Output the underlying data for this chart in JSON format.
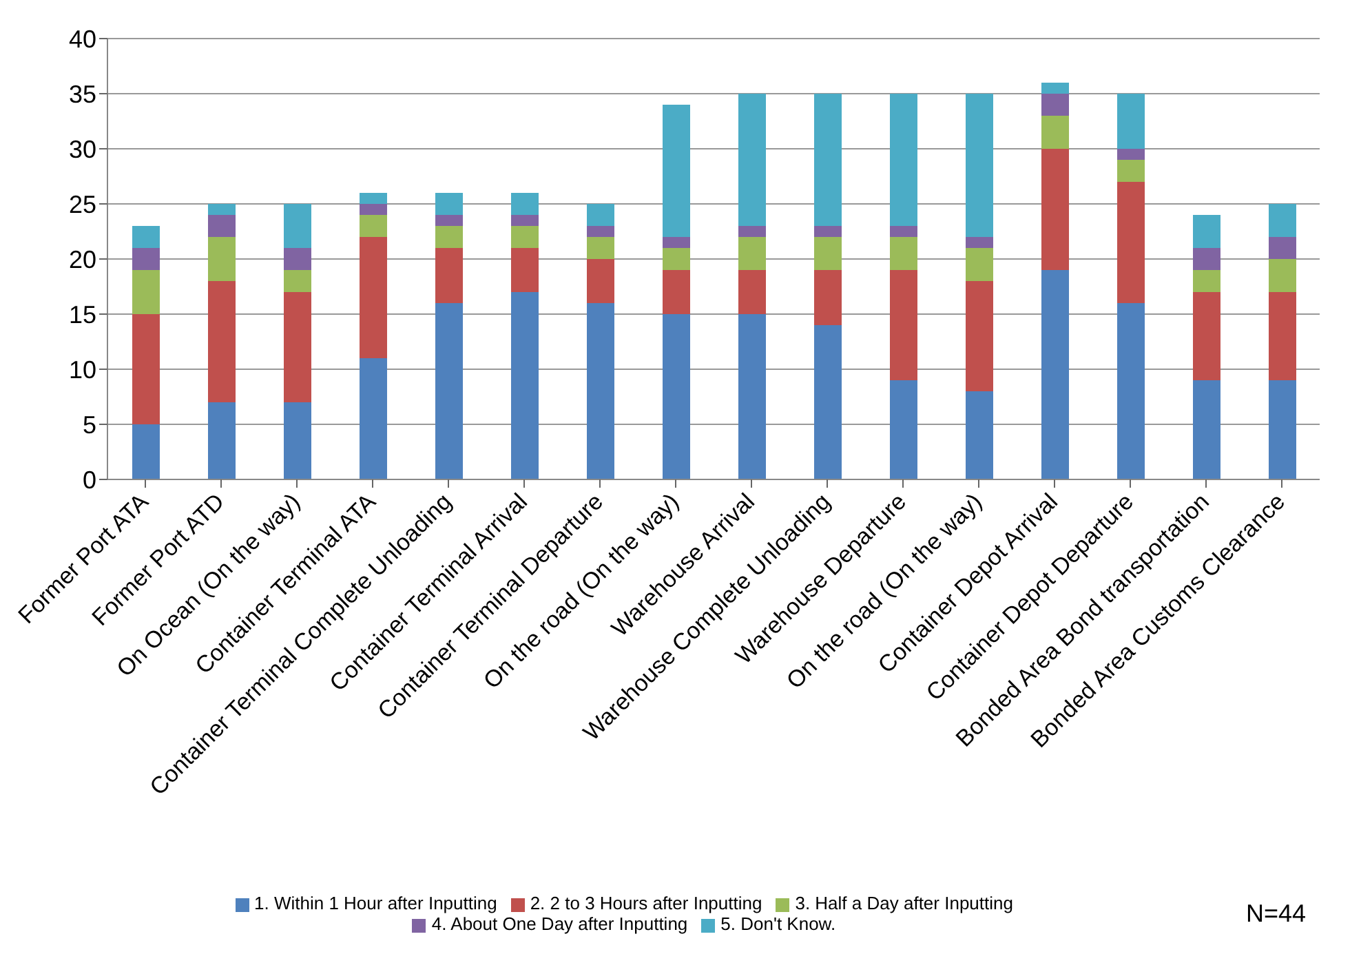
{
  "chart_data": {
    "type": "bar",
    "stacked": true,
    "categories": [
      "Former Port ATA",
      "Former Port ATD",
      "On Ocean (On the way)",
      "Container Terminal ATA",
      "Container Terminal Complete Unloading",
      "Container Terminal Arrival",
      "Container Terminal Departure",
      "On the road (On the way)",
      "Warehouse Arrival",
      "Warehouse Complete Unloading",
      "Warehouse Departure",
      "On the road (On the way)",
      "Container Depot Arrival",
      "Container Depot Departure",
      "Bonded Area Bond transportation",
      "Bonded Area Customs Clearance"
    ],
    "series": [
      {
        "name": "1. Within 1 Hour after Inputting",
        "color": "#4f81bd",
        "values": [
          5,
          7,
          7,
          11,
          16,
          17,
          16,
          15,
          15,
          14,
          9,
          8,
          19,
          16,
          9,
          9
        ]
      },
      {
        "name": "2. 2 to 3 Hours after Inputting",
        "color": "#c0504d",
        "values": [
          10,
          11,
          10,
          11,
          5,
          4,
          4,
          4,
          4,
          5,
          10,
          10,
          11,
          11,
          8,
          8
        ]
      },
      {
        "name": "3. Half a Day after Inputting",
        "color": "#9bbb59",
        "values": [
          4,
          4,
          2,
          2,
          2,
          2,
          2,
          2,
          3,
          3,
          3,
          3,
          3,
          2,
          2,
          3
        ]
      },
      {
        "name": "4. About One Day after Inputting",
        "color": "#8064a2",
        "values": [
          2,
          2,
          2,
          1,
          1,
          1,
          1,
          1,
          1,
          1,
          1,
          1,
          2,
          1,
          2,
          2
        ]
      },
      {
        "name": "5. Don't Know.",
        "color": "#4bacc6",
        "values": [
          2,
          1,
          4,
          1,
          2,
          2,
          2,
          12,
          12,
          12,
          12,
          13,
          1,
          5,
          3,
          3
        ]
      }
    ],
    "ylim": [
      0,
      40
    ],
    "yticks": [
      0,
      5,
      10,
      15,
      20,
      25,
      30,
      35,
      40
    ],
    "grid": "y",
    "legend": "bottom",
    "annotations": [
      "N=44"
    ]
  }
}
